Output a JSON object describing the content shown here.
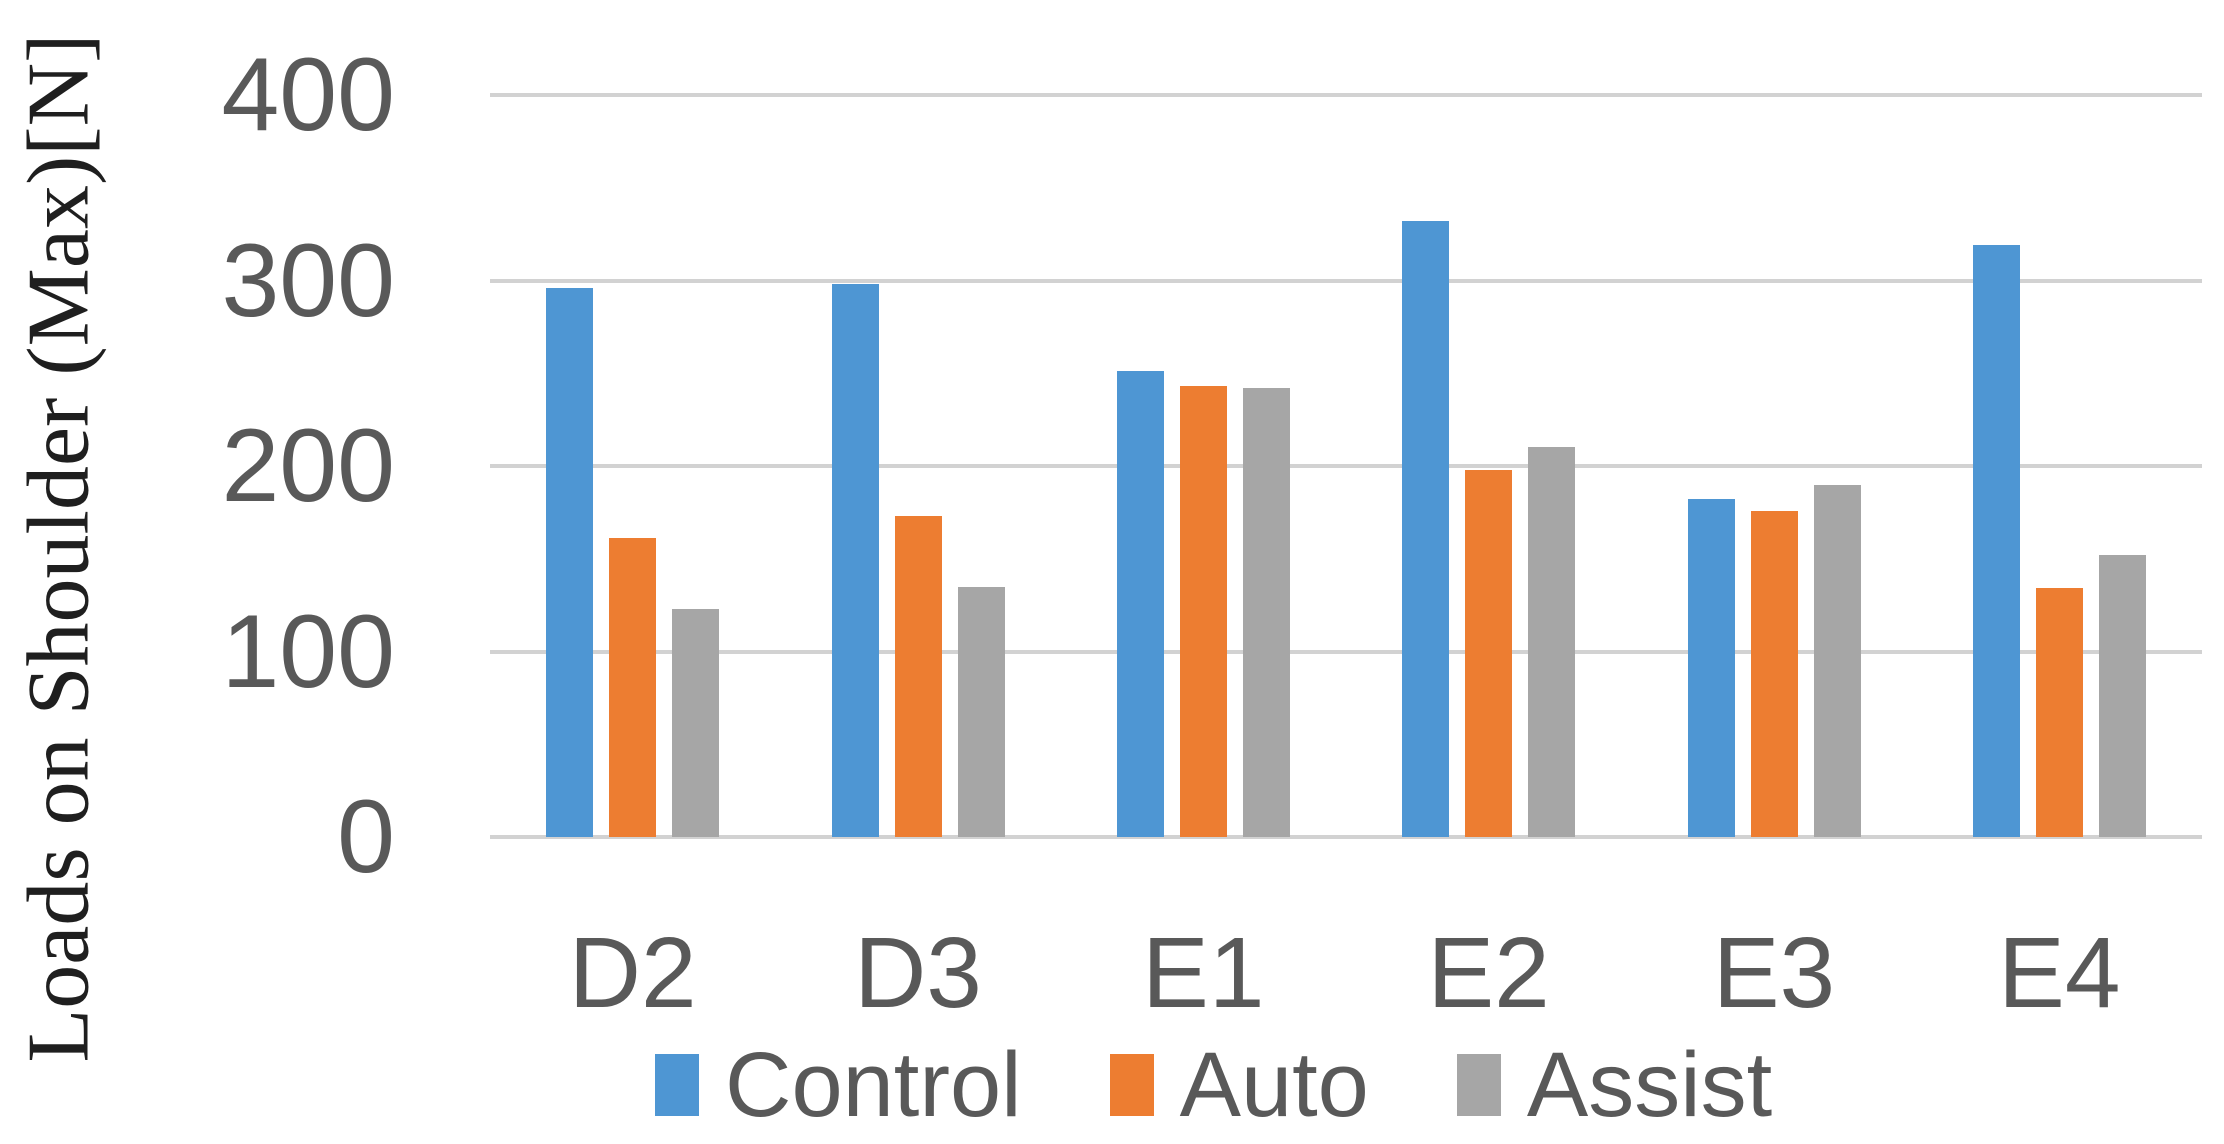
{
  "figure": {
    "background": "#ffffff",
    "text_color": "#595959",
    "gridline_color": "#d2d2d2",
    "axis_title_color": "#1f1f1f"
  },
  "chart_data": {
    "type": "bar",
    "title": "",
    "ylabel": "Loads on Shoulder (Max)[N]",
    "xlabel": "",
    "ylim": [
      0,
      400
    ],
    "yticks": [
      400,
      300,
      200,
      100,
      0
    ],
    "grid": true,
    "legend_position": "bottom",
    "categories": [
      "D2",
      "D3",
      "E1",
      "E2",
      "E3",
      "E4"
    ],
    "series": [
      {
        "name": "Control",
        "color": "#4E96D3",
        "values": [
          296,
          298,
          251,
          332,
          182,
          319
        ]
      },
      {
        "name": "Auto",
        "color": "#ED7D31",
        "values": [
          161,
          173,
          243,
          198,
          176,
          134
        ]
      },
      {
        "name": "Assist",
        "color": "#A6A6A6",
        "values": [
          123,
          135,
          242,
          210,
          190,
          152
        ]
      }
    ]
  }
}
